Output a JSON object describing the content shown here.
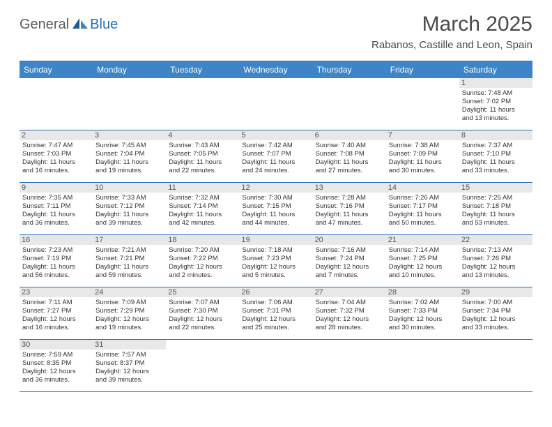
{
  "logo": {
    "part1": "General",
    "part2": "Blue"
  },
  "title": "March 2025",
  "location": "Rabanos, Castille and Leon, Spain",
  "day_header_bg": "#3d85c6",
  "border_color": "#2a6fb5",
  "daynum_bg": "#e8e8e8",
  "days_of_week": [
    "Sunday",
    "Monday",
    "Tuesday",
    "Wednesday",
    "Thursday",
    "Friday",
    "Saturday"
  ],
  "weeks": [
    [
      null,
      null,
      null,
      null,
      null,
      null,
      {
        "n": "1",
        "sunrise": "Sunrise: 7:48 AM",
        "sunset": "Sunset: 7:02 PM",
        "day1": "Daylight: 11 hours",
        "day2": "and 13 minutes."
      }
    ],
    [
      {
        "n": "2",
        "sunrise": "Sunrise: 7:47 AM",
        "sunset": "Sunset: 7:03 PM",
        "day1": "Daylight: 11 hours",
        "day2": "and 16 minutes."
      },
      {
        "n": "3",
        "sunrise": "Sunrise: 7:45 AM",
        "sunset": "Sunset: 7:04 PM",
        "day1": "Daylight: 11 hours",
        "day2": "and 19 minutes."
      },
      {
        "n": "4",
        "sunrise": "Sunrise: 7:43 AM",
        "sunset": "Sunset: 7:05 PM",
        "day1": "Daylight: 11 hours",
        "day2": "and 22 minutes."
      },
      {
        "n": "5",
        "sunrise": "Sunrise: 7:42 AM",
        "sunset": "Sunset: 7:07 PM",
        "day1": "Daylight: 11 hours",
        "day2": "and 24 minutes."
      },
      {
        "n": "6",
        "sunrise": "Sunrise: 7:40 AM",
        "sunset": "Sunset: 7:08 PM",
        "day1": "Daylight: 11 hours",
        "day2": "and 27 minutes."
      },
      {
        "n": "7",
        "sunrise": "Sunrise: 7:38 AM",
        "sunset": "Sunset: 7:09 PM",
        "day1": "Daylight: 11 hours",
        "day2": "and 30 minutes."
      },
      {
        "n": "8",
        "sunrise": "Sunrise: 7:37 AM",
        "sunset": "Sunset: 7:10 PM",
        "day1": "Daylight: 11 hours",
        "day2": "and 33 minutes."
      }
    ],
    [
      {
        "n": "9",
        "sunrise": "Sunrise: 7:35 AM",
        "sunset": "Sunset: 7:11 PM",
        "day1": "Daylight: 11 hours",
        "day2": "and 36 minutes."
      },
      {
        "n": "10",
        "sunrise": "Sunrise: 7:33 AM",
        "sunset": "Sunset: 7:12 PM",
        "day1": "Daylight: 11 hours",
        "day2": "and 39 minutes."
      },
      {
        "n": "11",
        "sunrise": "Sunrise: 7:32 AM",
        "sunset": "Sunset: 7:14 PM",
        "day1": "Daylight: 11 hours",
        "day2": "and 42 minutes."
      },
      {
        "n": "12",
        "sunrise": "Sunrise: 7:30 AM",
        "sunset": "Sunset: 7:15 PM",
        "day1": "Daylight: 11 hours",
        "day2": "and 44 minutes."
      },
      {
        "n": "13",
        "sunrise": "Sunrise: 7:28 AM",
        "sunset": "Sunset: 7:16 PM",
        "day1": "Daylight: 11 hours",
        "day2": "and 47 minutes."
      },
      {
        "n": "14",
        "sunrise": "Sunrise: 7:26 AM",
        "sunset": "Sunset: 7:17 PM",
        "day1": "Daylight: 11 hours",
        "day2": "and 50 minutes."
      },
      {
        "n": "15",
        "sunrise": "Sunrise: 7:25 AM",
        "sunset": "Sunset: 7:18 PM",
        "day1": "Daylight: 11 hours",
        "day2": "and 53 minutes."
      }
    ],
    [
      {
        "n": "16",
        "sunrise": "Sunrise: 7:23 AM",
        "sunset": "Sunset: 7:19 PM",
        "day1": "Daylight: 11 hours",
        "day2": "and 56 minutes."
      },
      {
        "n": "17",
        "sunrise": "Sunrise: 7:21 AM",
        "sunset": "Sunset: 7:21 PM",
        "day1": "Daylight: 11 hours",
        "day2": "and 59 minutes."
      },
      {
        "n": "18",
        "sunrise": "Sunrise: 7:20 AM",
        "sunset": "Sunset: 7:22 PM",
        "day1": "Daylight: 12 hours",
        "day2": "and 2 minutes."
      },
      {
        "n": "19",
        "sunrise": "Sunrise: 7:18 AM",
        "sunset": "Sunset: 7:23 PM",
        "day1": "Daylight: 12 hours",
        "day2": "and 5 minutes."
      },
      {
        "n": "20",
        "sunrise": "Sunrise: 7:16 AM",
        "sunset": "Sunset: 7:24 PM",
        "day1": "Daylight: 12 hours",
        "day2": "and 7 minutes."
      },
      {
        "n": "21",
        "sunrise": "Sunrise: 7:14 AM",
        "sunset": "Sunset: 7:25 PM",
        "day1": "Daylight: 12 hours",
        "day2": "and 10 minutes."
      },
      {
        "n": "22",
        "sunrise": "Sunrise: 7:13 AM",
        "sunset": "Sunset: 7:26 PM",
        "day1": "Daylight: 12 hours",
        "day2": "and 13 minutes."
      }
    ],
    [
      {
        "n": "23",
        "sunrise": "Sunrise: 7:11 AM",
        "sunset": "Sunset: 7:27 PM",
        "day1": "Daylight: 12 hours",
        "day2": "and 16 minutes."
      },
      {
        "n": "24",
        "sunrise": "Sunrise: 7:09 AM",
        "sunset": "Sunset: 7:29 PM",
        "day1": "Daylight: 12 hours",
        "day2": "and 19 minutes."
      },
      {
        "n": "25",
        "sunrise": "Sunrise: 7:07 AM",
        "sunset": "Sunset: 7:30 PM",
        "day1": "Daylight: 12 hours",
        "day2": "and 22 minutes."
      },
      {
        "n": "26",
        "sunrise": "Sunrise: 7:06 AM",
        "sunset": "Sunset: 7:31 PM",
        "day1": "Daylight: 12 hours",
        "day2": "and 25 minutes."
      },
      {
        "n": "27",
        "sunrise": "Sunrise: 7:04 AM",
        "sunset": "Sunset: 7:32 PM",
        "day1": "Daylight: 12 hours",
        "day2": "and 28 minutes."
      },
      {
        "n": "28",
        "sunrise": "Sunrise: 7:02 AM",
        "sunset": "Sunset: 7:33 PM",
        "day1": "Daylight: 12 hours",
        "day2": "and 30 minutes."
      },
      {
        "n": "29",
        "sunrise": "Sunrise: 7:00 AM",
        "sunset": "Sunset: 7:34 PM",
        "day1": "Daylight: 12 hours",
        "day2": "and 33 minutes."
      }
    ],
    [
      {
        "n": "30",
        "sunrise": "Sunrise: 7:59 AM",
        "sunset": "Sunset: 8:35 PM",
        "day1": "Daylight: 12 hours",
        "day2": "and 36 minutes."
      },
      {
        "n": "31",
        "sunrise": "Sunrise: 7:57 AM",
        "sunset": "Sunset: 8:37 PM",
        "day1": "Daylight: 12 hours",
        "day2": "and 39 minutes."
      },
      null,
      null,
      null,
      null,
      null
    ]
  ]
}
